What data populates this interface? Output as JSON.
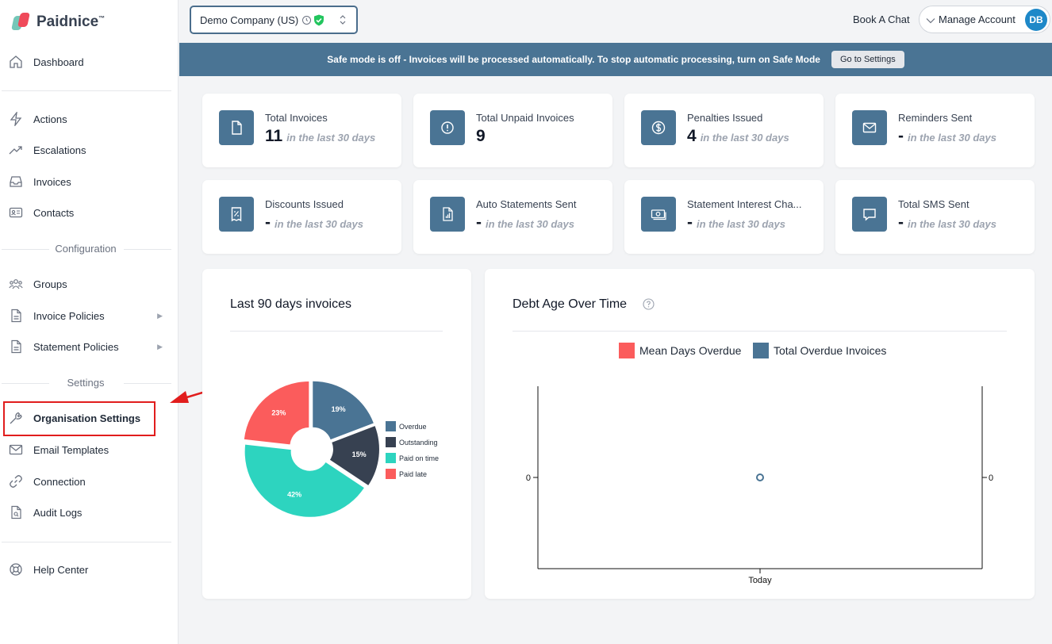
{
  "brand": {
    "name": "Paidnice",
    "tm": "™"
  },
  "sidebar": {
    "dashboard": "Dashboard",
    "actions": "Actions",
    "escalations": "Escalations",
    "invoices": "Invoices",
    "contacts": "Contacts",
    "configuration_label": "Configuration",
    "groups": "Groups",
    "invoice_policies": "Invoice Policies",
    "statement_policies": "Statement Policies",
    "settings_label": "Settings",
    "organisation_settings": "Organisation Settings",
    "email_templates": "Email Templates",
    "connection": "Connection",
    "audit_logs": "Audit Logs",
    "help_center": "Help Center",
    "caret": "▶"
  },
  "topbar": {
    "company": "Demo Company (US)",
    "book_chat": "Book A Chat",
    "manage_account": "Manage Account",
    "avatar_initials": "DB"
  },
  "banner": {
    "message": "Safe mode is off - Invoices will be processed automatically. To stop automatic processing, turn on Safe Mode",
    "button": "Go to Settings"
  },
  "stats": [
    {
      "title": "Total Invoices",
      "value": "11",
      "sub": "in the last 30 days",
      "icon": "document-icon"
    },
    {
      "title": "Total Unpaid Invoices",
      "value": "9",
      "sub": "",
      "icon": "alert-circle-icon"
    },
    {
      "title": "Penalties Issued",
      "value": "4",
      "sub": "in the last 30 days",
      "icon": "dollar-circle-icon"
    },
    {
      "title": "Reminders Sent",
      "value": "-",
      "sub": "in the last 30 days",
      "icon": "mail-icon"
    },
    {
      "title": "Discounts Issued",
      "value": "-",
      "sub": "in the last 30 days",
      "icon": "percent-receipt-icon"
    },
    {
      "title": "Auto Statements Sent",
      "value": "-",
      "sub": "in the last 30 days",
      "icon": "chart-document-icon"
    },
    {
      "title": "Statement Interest Cha...",
      "value": "-",
      "sub": "in the last 30 days",
      "icon": "cash-icon"
    },
    {
      "title": "Total SMS Sent",
      "value": "-",
      "sub": "in the last 30 days",
      "icon": "chat-bubble-icon"
    }
  ],
  "chart_data": [
    {
      "type": "pie",
      "title": "Last 90 days invoices",
      "categories": [
        "Overdue",
        "Outstanding",
        "Paid on time",
        "Paid late"
      ],
      "values": [
        19,
        15,
        42,
        23
      ],
      "labels": [
        "19%",
        "15%",
        "42%",
        "23%"
      ],
      "colors": [
        "#4a7494",
        "#374151",
        "#2dd4bf",
        "#fb5c5c"
      ],
      "legend": "right"
    },
    {
      "type": "line",
      "title": "Debt Age Over Time",
      "series": [
        {
          "name": "Mean Days Overdue",
          "color": "#fb5c5c",
          "values": [
            0
          ]
        },
        {
          "name": "Total Overdue Invoices",
          "color": "#4a7494",
          "values": [
            0
          ]
        }
      ],
      "categories": [
        "Today"
      ],
      "y_left_tick": "0",
      "y_right_tick": "0",
      "legend": "top"
    }
  ]
}
